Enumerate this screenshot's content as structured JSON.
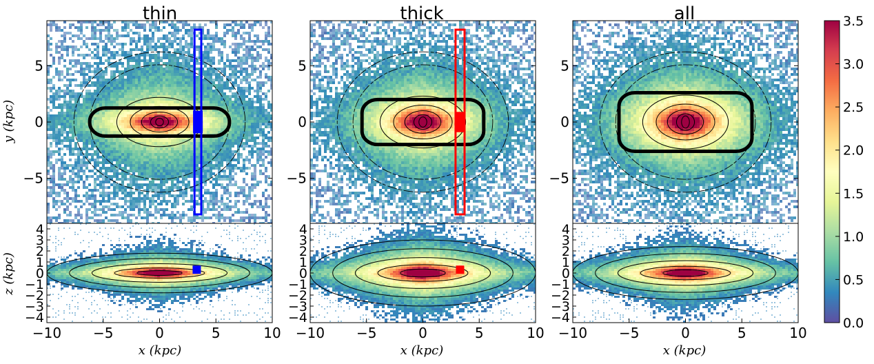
{
  "chart_data": {
    "type": "heatmap",
    "panels": [
      {
        "title": "thin",
        "face_on": {
          "xlim": [
            -10,
            10
          ],
          "ylim": [
            -9,
            9
          ],
          "yticks": [
            -5,
            0,
            5
          ],
          "contour_width": 6.2,
          "contour_height": 1.25,
          "contour_yscale": 1.0,
          "box": {
            "color": "#0000ff",
            "x": [
              3.1,
              3.7
            ],
            "y": [
              -8.2,
              8.2
            ]
          },
          "marker": {
            "color": "#0000ff",
            "x": 3.4,
            "y": 0.0,
            "height": 2.0
          }
        },
        "edge_on": {
          "xlim": [
            -10,
            10
          ],
          "ylim": [
            -4.5,
            4.5
          ],
          "yticks": [
            -4,
            -3,
            -2,
            -1,
            0,
            1,
            2,
            3,
            4
          ],
          "thickness": 1.2,
          "marker": {
            "color": "#0000ff",
            "x": 3.3,
            "z": 0.3
          }
        },
        "xticks": [
          -10,
          -5,
          0,
          5,
          10
        ]
      },
      {
        "title": "thick",
        "face_on": {
          "xlim": [
            -10,
            10
          ],
          "ylim": [
            -9,
            9
          ],
          "yticks": [
            -5,
            0,
            5
          ],
          "contour_width": 5.4,
          "contour_height": 2.0,
          "contour_yscale": 1.0,
          "box": {
            "color": "#ff0000",
            "x": [
              2.9,
              3.7
            ],
            "y": [
              -8.2,
              8.2
            ]
          },
          "marker": {
            "color": "#ff0000",
            "x": 3.3,
            "y": 0.0,
            "height": 1.8
          }
        },
        "edge_on": {
          "xlim": [
            -10,
            10
          ],
          "ylim": [
            -4.5,
            4.5
          ],
          "yticks": [
            -4,
            -3,
            -2,
            -1,
            0,
            1,
            2,
            3,
            4
          ],
          "thickness": 2.0,
          "marker": {
            "color": "#ff0000",
            "x": 3.3,
            "z": 0.3
          }
        },
        "xticks": [
          -10,
          -5,
          0,
          5,
          10
        ]
      },
      {
        "title": "all",
        "face_on": {
          "xlim": [
            -10,
            10
          ],
          "ylim": [
            -9,
            9
          ],
          "yticks": [
            -5,
            0,
            5
          ],
          "contour_width": 5.9,
          "contour_height": 2.6,
          "contour_yscale": 1.0,
          "box": null,
          "marker": null
        },
        "edge_on": {
          "xlim": [
            -10,
            10
          ],
          "ylim": [
            -4.5,
            4.5
          ],
          "yticks": [
            -4,
            -3,
            -2,
            -1,
            0,
            1,
            2,
            3,
            4
          ],
          "thickness": 1.6,
          "marker": null
        },
        "xticks": [
          -10,
          -5,
          0,
          5,
          10
        ]
      }
    ],
    "ylabel_face": "y (kpc)",
    "ylabel_edge": "z (kpc)",
    "xlabel": "x (kpc)",
    "colorbar": {
      "range": [
        0.0,
        3.5
      ],
      "ticks": [
        "0.0",
        "0.5",
        "1.0",
        "1.5",
        "2.0",
        "2.5",
        "3.0",
        "3.5"
      ],
      "colormap": "Spectral_r",
      "colors": [
        "#5e4fa2",
        "#3288bd",
        "#66c2a5",
        "#abdda4",
        "#e6f598",
        "#ffffbf",
        "#fee08b",
        "#fdae61",
        "#f46d43",
        "#d53e4f",
        "#9e0142"
      ]
    }
  }
}
